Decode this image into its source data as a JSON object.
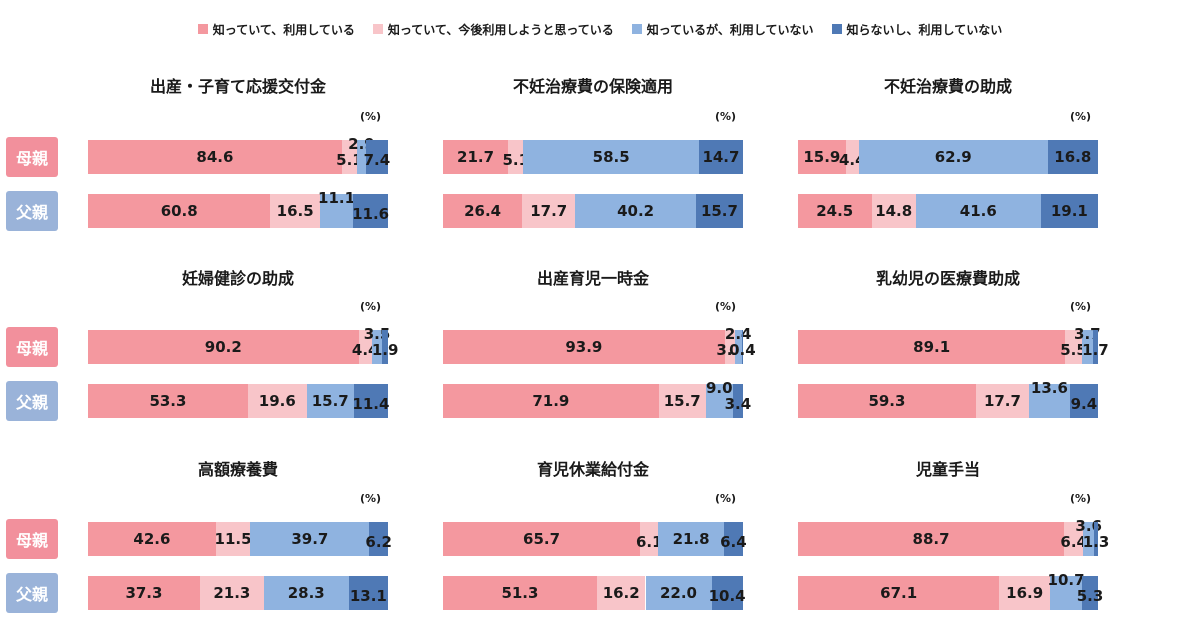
{
  "colors": {
    "know_use": "#f4989f",
    "know_plan": "#f8c5c9",
    "know_not_use": "#8fb3e0",
    "not_know": "#4f79b5",
    "mother_label_bg": "#f2909c",
    "father_label_bg": "#9ab3d9"
  },
  "legend": [
    {
      "label": "知っていて、利用している",
      "color": "#f4989f"
    },
    {
      "label": "知っていて、今後利用しようと思っている",
      "color": "#f8c5c9"
    },
    {
      "label": "知っているが、利用していない",
      "color": "#8fb3e0"
    },
    {
      "label": "知らないし、利用していない",
      "color": "#4f79b5"
    }
  ],
  "row_labels": {
    "mother": "母親",
    "father": "父親"
  },
  "percent_unit": "(%)",
  "chart_data": [
    {
      "type": "bar",
      "stacked": true,
      "orientation": "horizontal",
      "title": "出産・子育て応援交付金",
      "categories": [
        "母親",
        "父親"
      ],
      "series": [
        {
          "name": "知っていて、利用している",
          "values": [
            84.6,
            60.8
          ]
        },
        {
          "name": "知っていて、今後利用しようと思っている",
          "values": [
            5.1,
            16.5
          ]
        },
        {
          "name": "知っているが、利用していない",
          "values": [
            2.9,
            11.1
          ]
        },
        {
          "name": "知らないし、利用していない",
          "values": [
            7.4,
            11.6
          ]
        }
      ]
    },
    {
      "type": "bar",
      "stacked": true,
      "orientation": "horizontal",
      "title": "不妊治療費の保険適用",
      "categories": [
        "母親",
        "父親"
      ],
      "series": [
        {
          "name": "知っていて、利用している",
          "values": [
            21.7,
            26.4
          ]
        },
        {
          "name": "知っていて、今後利用しようと思っている",
          "values": [
            5.1,
            17.7
          ]
        },
        {
          "name": "知っているが、利用していない",
          "values": [
            58.5,
            40.2
          ]
        },
        {
          "name": "知らないし、利用していない",
          "values": [
            14.7,
            15.7
          ]
        }
      ]
    },
    {
      "type": "bar",
      "stacked": true,
      "orientation": "horizontal",
      "title": "不妊治療費の助成",
      "categories": [
        "母親",
        "父親"
      ],
      "series": [
        {
          "name": "知っていて、利用している",
          "values": [
            15.9,
            24.5
          ]
        },
        {
          "name": "知っていて、今後利用しようと思っている",
          "values": [
            4.4,
            14.8
          ]
        },
        {
          "name": "知っているが、利用していない",
          "values": [
            62.9,
            41.6
          ]
        },
        {
          "name": "知らないし、利用していない",
          "values": [
            16.8,
            19.1
          ]
        }
      ]
    },
    {
      "type": "bar",
      "stacked": true,
      "orientation": "horizontal",
      "title": "妊婦健診の助成",
      "categories": [
        "母親",
        "父親"
      ],
      "series": [
        {
          "name": "知っていて、利用している",
          "values": [
            90.2,
            53.3
          ]
        },
        {
          "name": "知っていて、今後利用しようと思っている",
          "values": [
            4.4,
            19.6
          ]
        },
        {
          "name": "知っているが、利用していない",
          "values": [
            3.5,
            15.7
          ]
        },
        {
          "name": "知らないし、利用していない",
          "values": [
            1.9,
            11.4
          ]
        }
      ]
    },
    {
      "type": "bar",
      "stacked": true,
      "orientation": "horizontal",
      "title": "出産育児一時金",
      "categories": [
        "母親",
        "父親"
      ],
      "series": [
        {
          "name": "知っていて、利用している",
          "values": [
            93.9,
            71.9
          ]
        },
        {
          "name": "知っていて、今後利用しようと思っている",
          "values": [
            3.3,
            15.7
          ]
        },
        {
          "name": "知っているが、利用していない",
          "values": [
            2.4,
            9.0
          ]
        },
        {
          "name": "知らないし、利用していない",
          "values": [
            0.4,
            3.4
          ]
        }
      ]
    },
    {
      "type": "bar",
      "stacked": true,
      "orientation": "horizontal",
      "title": "乳幼児の医療費助成",
      "categories": [
        "母親",
        "父親"
      ],
      "series": [
        {
          "name": "知っていて、利用している",
          "values": [
            89.1,
            59.3
          ]
        },
        {
          "name": "知っていて、今後利用しようと思っている",
          "values": [
            5.5,
            17.7
          ]
        },
        {
          "name": "知っているが、利用していない",
          "values": [
            3.7,
            13.6
          ]
        },
        {
          "name": "知らないし、利用していない",
          "values": [
            1.7,
            9.4
          ]
        }
      ]
    },
    {
      "type": "bar",
      "stacked": true,
      "orientation": "horizontal",
      "title": "高額療養費",
      "categories": [
        "母親",
        "父親"
      ],
      "series": [
        {
          "name": "知っていて、利用している",
          "values": [
            42.6,
            37.3
          ]
        },
        {
          "name": "知っていて、今後利用しようと思っている",
          "values": [
            11.5,
            21.3
          ]
        },
        {
          "name": "知っているが、利用していない",
          "values": [
            39.7,
            28.3
          ]
        },
        {
          "name": "知らないし、利用していない",
          "values": [
            6.2,
            13.1
          ]
        }
      ]
    },
    {
      "type": "bar",
      "stacked": true,
      "orientation": "horizontal",
      "title": "育児休業給付金",
      "categories": [
        "母親",
        "父親"
      ],
      "series": [
        {
          "name": "知っていて、利用している",
          "values": [
            65.7,
            51.3
          ]
        },
        {
          "name": "知っていて、今後利用しようと思っている",
          "values": [
            6.1,
            16.2
          ]
        },
        {
          "name": "知っているが、利用していない",
          "values": [
            21.8,
            22.0
          ]
        },
        {
          "name": "知らないし、利用していない",
          "values": [
            6.4,
            10.4
          ]
        }
      ]
    },
    {
      "type": "bar",
      "stacked": true,
      "orientation": "horizontal",
      "title": "児童手当",
      "categories": [
        "母親",
        "父親"
      ],
      "series": [
        {
          "name": "知っていて、利用している",
          "values": [
            88.7,
            67.1
          ]
        },
        {
          "name": "知っていて、今後利用しようと思っている",
          "values": [
            6.4,
            16.9
          ]
        },
        {
          "name": "知っているが、利用していない",
          "values": [
            3.6,
            10.7
          ]
        },
        {
          "name": "知らないし、利用していない",
          "values": [
            1.3,
            5.3
          ]
        }
      ]
    }
  ]
}
